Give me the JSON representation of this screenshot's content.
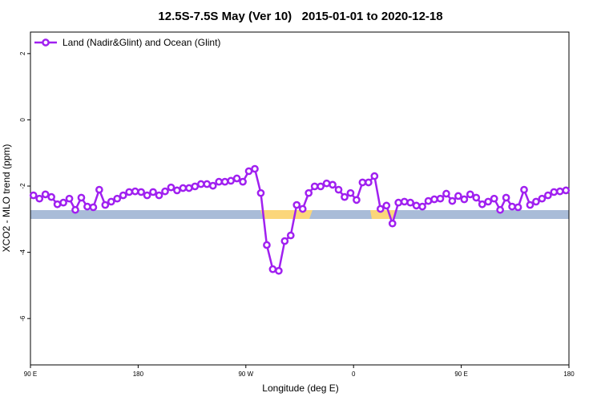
{
  "chart_data": {
    "type": "line",
    "title": "12.5S-7.5S May (Ver 10)   2015-01-01 to 2020-12-18",
    "x_label": "Longitude (deg E)",
    "y_label": "XCO2 - MLO trend (ppm)",
    "xlim": [
      90,
      540
    ],
    "ylim": [
      -7.4,
      2.65
    ],
    "xticks": [
      {
        "value": 90,
        "label": "90 E"
      },
      180,
      {
        "value": 270,
        "label": "90 W"
      },
      {
        "value": 360,
        "label": "0"
      },
      {
        "value": 450,
        "label": "90 E"
      },
      {
        "value": 540,
        "label": "180"
      }
    ],
    "yticks": [
      2,
      0,
      -2,
      -4,
      -6
    ],
    "legend": "top-left",
    "x": [
      92.5,
      97.5,
      102.5,
      107.5,
      112.5,
      117.5,
      122.5,
      127.5,
      132.5,
      137.5,
      142.5,
      147.5,
      152.5,
      157.5,
      162.5,
      167.5,
      172.5,
      177.5,
      182.5,
      187.5,
      192.5,
      197.5,
      202.5,
      207.5,
      212.5,
      217.5,
      222.5,
      227.5,
      232.5,
      237.5,
      242.5,
      247.5,
      252.5,
      257.5,
      262.5,
      267.5,
      272.5,
      277.5,
      282.5,
      287.5,
      292.5,
      297.5,
      302.5,
      307.5,
      312.5,
      317.5,
      322.5,
      327.5,
      332.5,
      337.5,
      342.5,
      347.5,
      352.5,
      357.5,
      362.5,
      367.5,
      372.5,
      377.5,
      382.5,
      387.5,
      392.5,
      397.5,
      402.5,
      407.5,
      412.5,
      417.5,
      422.5,
      427.5,
      432.5,
      437.5,
      442.5,
      447.5,
      452.5,
      457.5,
      462.5,
      467.5,
      472.5,
      477.5,
      482.5,
      487.5,
      492.5,
      497.5,
      502.5,
      507.5,
      512.5,
      517.5,
      522.5,
      527.5,
      532.5,
      537.5
    ],
    "series": [
      {
        "name": "Land (Nadir&Glint) and Ocean (Glint)",
        "color": "#a020f0",
        "values": [
          -2.28,
          -2.38,
          -2.25,
          -2.33,
          -2.55,
          -2.5,
          -2.38,
          -2.72,
          -2.35,
          -2.62,
          -2.64,
          -2.11,
          -2.57,
          -2.47,
          -2.38,
          -2.28,
          -2.18,
          -2.16,
          -2.18,
          -2.28,
          -2.18,
          -2.28,
          -2.16,
          -2.04,
          -2.13,
          -2.06,
          -2.06,
          -2.01,
          -1.94,
          -1.94,
          -1.99,
          -1.87,
          -1.87,
          -1.84,
          -1.77,
          -1.87,
          -1.55,
          -1.48,
          -2.21,
          -3.78,
          -4.51,
          -4.56,
          -3.66,
          -3.49,
          -2.57,
          -2.69,
          -2.21,
          -2.01,
          -2.01,
          -1.92,
          -1.96,
          -2.11,
          -2.33,
          -2.21,
          -2.42,
          -1.89,
          -1.89,
          -1.7,
          -2.69,
          -2.59,
          -3.13,
          -2.5,
          -2.47,
          -2.5,
          -2.59,
          -2.62,
          -2.45,
          -2.4,
          -2.38,
          -2.23,
          -2.45,
          -2.3,
          -2.4,
          -2.25,
          -2.35,
          -2.55,
          -2.47,
          -2.38,
          -2.72,
          -2.35,
          -2.62,
          -2.64,
          -2.11,
          -2.57,
          -2.47,
          -2.38,
          -2.28,
          -2.18,
          -2.16,
          -2.13
        ]
      }
    ]
  }
}
